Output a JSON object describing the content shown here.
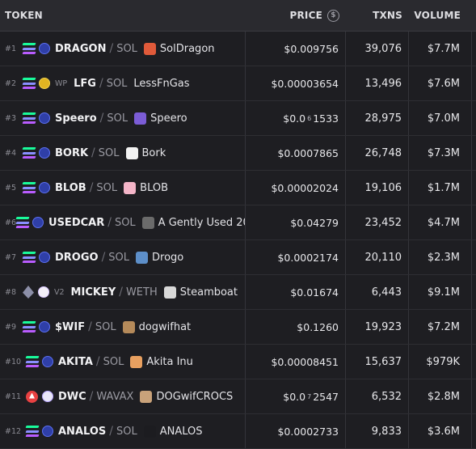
{
  "header": {
    "token": "TOKEN",
    "price": "PRICE",
    "txns": "TXNS",
    "volume": "VOLUME"
  },
  "rows": [
    {
      "rank": "#1",
      "chain": "solana-icon",
      "dex": "raydium-icon",
      "badge": "",
      "symbol": "DRAGON",
      "quote": "SOL",
      "name": "SolDragon",
      "logo_color": "#e05a3a",
      "price_main": "$0.009756",
      "price_zeros": "",
      "price_tail": "",
      "txns": "39,076",
      "volume": "$7.7M"
    },
    {
      "rank": "#2",
      "chain": "solana-icon",
      "dex": "gold-dex-icon",
      "badge": "WP",
      "symbol": "LFG",
      "quote": "SOL",
      "name": "LessFnGas",
      "logo_color": "",
      "price_main": "$0.00003654",
      "price_zeros": "",
      "price_tail": "",
      "txns": "13,496",
      "volume": "$7.6M"
    },
    {
      "rank": "#3",
      "chain": "solana-icon",
      "dex": "raydium-icon",
      "badge": "",
      "symbol": "Speero",
      "quote": "SOL",
      "name": "Speero",
      "logo_color": "#7b5cd6",
      "price_main": "$0.0",
      "price_zeros": "6",
      "price_tail": "1533",
      "txns": "28,975",
      "volume": "$7.0M"
    },
    {
      "rank": "#4",
      "chain": "solana-icon",
      "dex": "raydium-icon",
      "badge": "",
      "symbol": "BORK",
      "quote": "SOL",
      "name": "Bork",
      "logo_color": "#f2f2f2",
      "price_main": "$0.0007865",
      "price_zeros": "",
      "price_tail": "",
      "txns": "26,748",
      "volume": "$7.3M"
    },
    {
      "rank": "#5",
      "chain": "solana-icon",
      "dex": "raydium-icon",
      "badge": "",
      "symbol": "BLOB",
      "quote": "SOL",
      "name": "BLOB",
      "logo_color": "#f4b5c8",
      "price_main": "$0.00002024",
      "price_zeros": "",
      "price_tail": "",
      "txns": "19,106",
      "volume": "$1.7M"
    },
    {
      "rank": "#6",
      "chain": "solana-icon",
      "dex": "raydium-icon",
      "badge": "",
      "symbol": "USEDCAR",
      "quote": "SOL",
      "name": "A Gently Used 20",
      "logo_color": "#6b6b6b",
      "price_main": "$0.04279",
      "price_zeros": "",
      "price_tail": "",
      "txns": "23,452",
      "volume": "$4.7M"
    },
    {
      "rank": "#7",
      "chain": "solana-icon",
      "dex": "raydium-icon",
      "badge": "",
      "symbol": "DROGO",
      "quote": "SOL",
      "name": "Drogo",
      "logo_color": "#5d8fc9",
      "price_main": "$0.0002174",
      "price_zeros": "",
      "price_tail": "",
      "txns": "20,110",
      "volume": "$2.3M"
    },
    {
      "rank": "#8",
      "chain": "ethereum-icon",
      "dex": "unicorn-icon",
      "badge": "V2",
      "symbol": "MICKEY",
      "quote": "WETH",
      "name": "Steamboat",
      "logo_color": "#d8d8d8",
      "price_main": "$0.01674",
      "price_zeros": "",
      "price_tail": "",
      "txns": "6,443",
      "volume": "$9.1M"
    },
    {
      "rank": "#9",
      "chain": "solana-icon",
      "dex": "raydium-icon",
      "badge": "",
      "symbol": "$WIF",
      "quote": "SOL",
      "name": "dogwifhat",
      "logo_color": "#b58a5a",
      "price_main": "$0.1260",
      "price_zeros": "",
      "price_tail": "",
      "txns": "19,923",
      "volume": "$7.2M"
    },
    {
      "rank": "#10",
      "chain": "solana-icon",
      "dex": "raydium-icon",
      "badge": "",
      "symbol": "AKITA",
      "quote": "SOL",
      "name": "Akita Inu",
      "logo_color": "#e8a060",
      "price_main": "$0.00008451",
      "price_zeros": "",
      "price_tail": "",
      "txns": "15,637",
      "volume": "$979K"
    },
    {
      "rank": "#11",
      "chain": "avalanche-icon",
      "dex": "pangolin-icon",
      "badge": "",
      "symbol": "DWC",
      "quote": "WAVAX",
      "name": "DOGwifCROCS",
      "logo_color": "#c9a27a",
      "price_main": "$0.0",
      "price_zeros": "7",
      "price_tail": "2547",
      "txns": "6,532",
      "volume": "$2.8M"
    },
    {
      "rank": "#12",
      "chain": "solana-icon",
      "dex": "raydium-icon",
      "badge": "",
      "symbol": "ANALOS",
      "quote": "SOL",
      "name": "ANALOS",
      "logo_color": "#1c1c20",
      "price_main": "$0.0002733",
      "price_zeros": "",
      "price_tail": "",
      "txns": "9,833",
      "volume": "$3.6M"
    }
  ]
}
